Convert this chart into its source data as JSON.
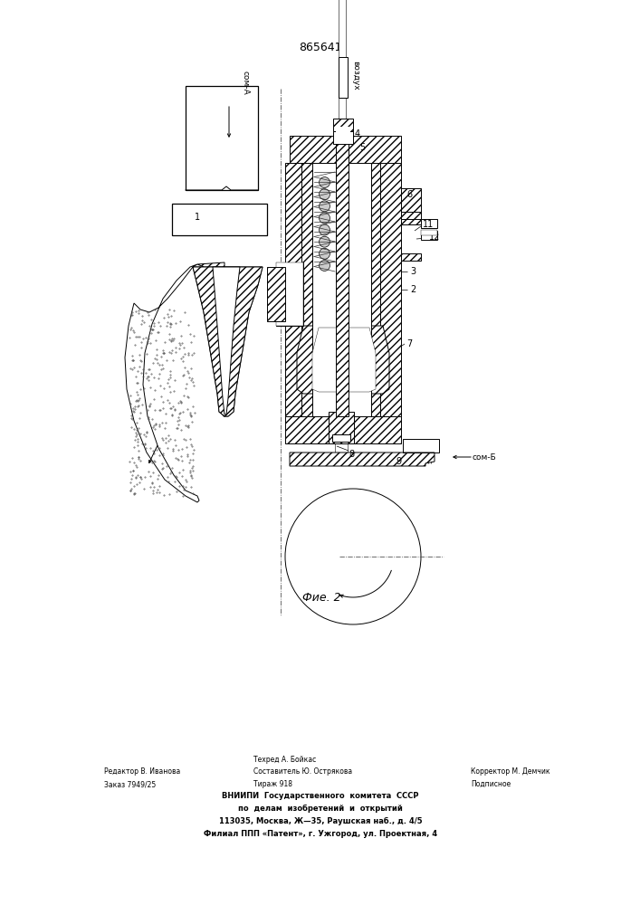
{
  "patent_number": "865641",
  "fig_label": "Фие. 2",
  "label_som_a": "сом-А",
  "label_vozduh": "воздух",
  "label_som_b": "сом-Б",
  "bg_color": "#ffffff",
  "line_color": "#000000",
  "footer_col1_line1": "Редактор В. Иванова",
  "footer_col1_line2": "Заказ 7949/25",
  "footer_col2_line1": "Составитель Ю. Острякова",
  "footer_col2_line1b": "Техред А. Бойкас",
  "footer_col2_line2": "Тираж 918",
  "footer_col3_line1": "Корректор М. Демчик",
  "footer_col3_line2": "Подписное",
  "footer_vniip1": "ВНИИПИ  Государственного  комитета  СССР",
  "footer_vniip2": "по  делам  изобретений  и  открытий",
  "footer_vniip3": "113035, Москва, Ж—35, Раушская наб., д. 4/5",
  "footer_vniip4": "Филиал ППП «Патент», г. Ужгород, ул. Проектная, 4"
}
